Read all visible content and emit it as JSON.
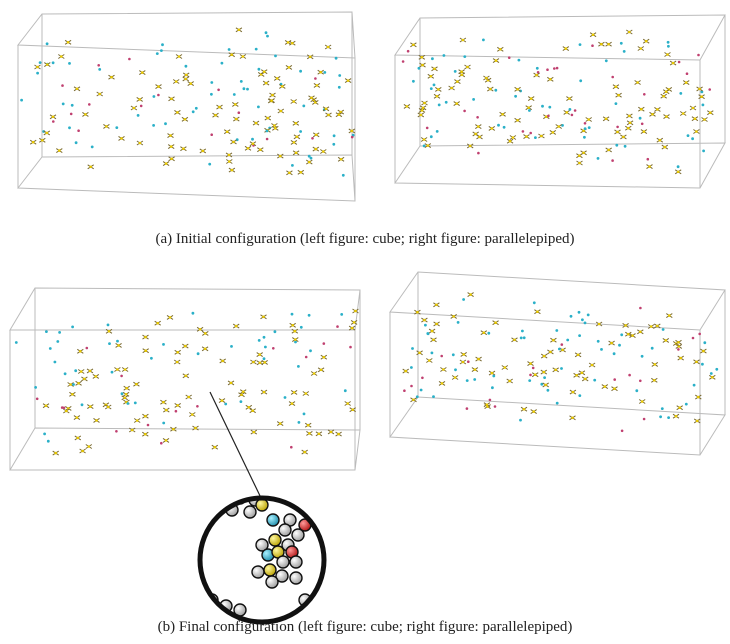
{
  "figure": {
    "panels": [
      {
        "caption": "(a)  Initial configuration (left figure: cube; right figure: parallelepiped)"
      },
      {
        "caption": "(b)  Final configuration (left figure: cube; right figure: parallelepiped)"
      }
    ]
  }
}
